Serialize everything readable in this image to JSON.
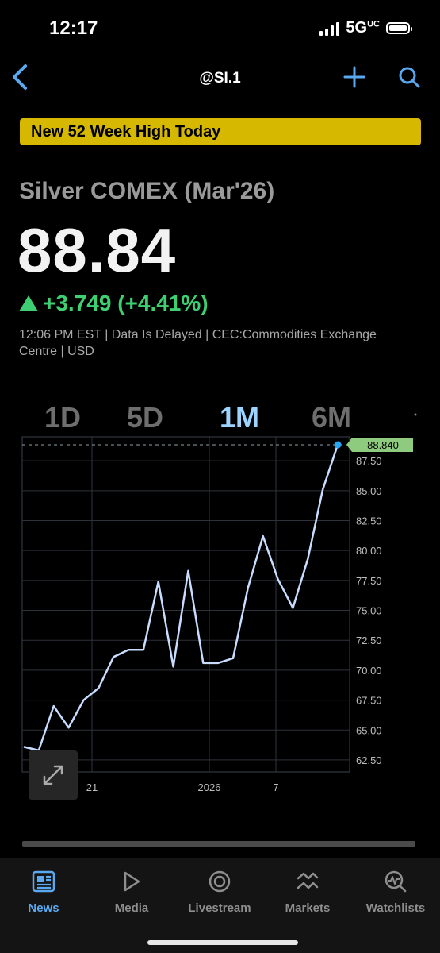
{
  "status": {
    "time": "12:17",
    "network": "5G",
    "network_sup": "UC"
  },
  "nav": {
    "title": "@SI.1"
  },
  "banner": "New 52 Week High Today",
  "instrument": {
    "name": "Silver COMEX (Mar'26)",
    "price": "88.84",
    "change": "+3.749 (+4.41%)",
    "meta": "12:06 PM EST | Data Is Delayed | CEC:Commodities Exchange Centre | USD"
  },
  "ranges": [
    "1D",
    "5D",
    "1M",
    "6M"
  ],
  "active_range": "1M",
  "colors": {
    "accent": "#5aa9f0",
    "up": "#3fcf73",
    "banner": "#d6b800",
    "line": "#c8dcff"
  },
  "chart_data": {
    "type": "line",
    "x_ticks": [
      "21",
      "2026",
      "7"
    ],
    "y_ticks": [
      "62.50",
      "65.00",
      "67.50",
      "70.00",
      "72.50",
      "75.00",
      "77.50",
      "80.00",
      "82.50",
      "85.00",
      "87.50"
    ],
    "ylim": [
      61.5,
      89.5
    ],
    "last_label": "88.840",
    "series": [
      {
        "values": [
          63.6,
          63.3,
          67.0,
          65.2,
          67.5,
          68.5,
          71.1,
          71.7,
          71.7,
          77.4,
          70.3,
          78.3,
          70.6,
          70.6,
          71.0,
          76.9,
          81.2,
          77.6,
          75.2,
          79.3,
          85.1,
          88.84
        ]
      }
    ],
    "grid": true
  },
  "tabs": [
    {
      "label": "News",
      "icon": "news-icon"
    },
    {
      "label": "Media",
      "icon": "play-icon"
    },
    {
      "label": "Livestream",
      "icon": "livestream-icon"
    },
    {
      "label": "Markets",
      "icon": "markets-icon"
    },
    {
      "label": "Watchlists",
      "icon": "watchlist-icon"
    }
  ]
}
